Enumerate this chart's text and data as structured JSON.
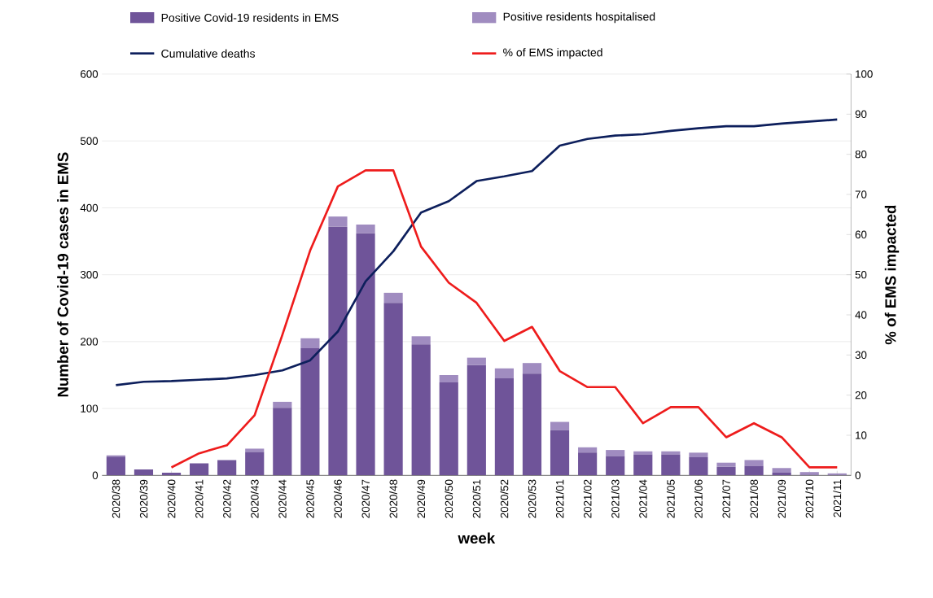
{
  "chart_data": {
    "type": "bar",
    "stacked": true,
    "xlabel": "week",
    "ylabel": "Number of Covid-19 cases in EMS",
    "y2label": "% of EMS impacted",
    "categories": [
      "2020/38",
      "2020/39",
      "2020/40",
      "2020/41",
      "2020/42",
      "2020/43",
      "2020/44",
      "2020/45",
      "2020/46",
      "2020/47",
      "2020/48",
      "2020/49",
      "2020/50",
      "2020/51",
      "2020/52",
      "2020/53",
      "2021/01",
      "2021/02",
      "2021/03",
      "2021/04",
      "2021/05",
      "2021/06",
      "2021/07",
      "2021/08",
      "2021/09",
      "2021/10",
      "2021/11"
    ],
    "series": [
      {
        "name": "Positive Covid-19 residents in EMS",
        "color": "#6f5499",
        "values": [
          28,
          9,
          4,
          18,
          23,
          35,
          101,
          190,
          372,
          362,
          258,
          196,
          139,
          165,
          145,
          152,
          68,
          34,
          29,
          31,
          31,
          27,
          13,
          14,
          4,
          1,
          1
        ]
      },
      {
        "name": "Positive residents hospitalised",
        "color": "#a08cc0",
        "values": [
          2,
          0,
          0,
          0,
          0,
          5,
          9,
          15,
          15,
          13,
          15,
          12,
          11,
          11,
          15,
          16,
          12,
          8,
          9,
          5,
          5,
          7,
          6,
          9,
          7,
          4,
          2
        ]
      },
      {
        "name": "Cumulative deaths",
        "type": "line",
        "color": "#0d1f5c",
        "values": [
          135,
          140,
          141,
          143,
          145,
          150,
          157,
          172,
          215,
          290,
          335,
          393,
          410,
          440,
          447,
          455,
          493,
          503,
          508,
          510,
          515,
          519,
          522,
          522,
          526,
          529,
          532
        ]
      },
      {
        "name": "% of EMS impacted",
        "type": "line",
        "axis": "y2",
        "color": "#ee1c1c",
        "values": [
          null,
          null,
          2,
          5.5,
          7.5,
          15,
          35,
          56,
          72,
          76,
          76,
          57,
          48,
          43,
          33.5,
          37,
          26,
          22,
          22,
          13,
          17,
          17,
          9.5,
          13,
          9.5,
          2,
          2
        ]
      }
    ],
    "ylim": [
      0,
      600
    ],
    "yticks": [
      0,
      100,
      200,
      300,
      400,
      500,
      600
    ],
    "y2lim": [
      0,
      100
    ],
    "y2ticks": [
      0,
      10,
      20,
      30,
      40,
      50,
      60,
      70,
      80,
      90,
      100
    ],
    "grid": "y",
    "legend": "top",
    "line_style": "solid",
    "marker": "none"
  }
}
